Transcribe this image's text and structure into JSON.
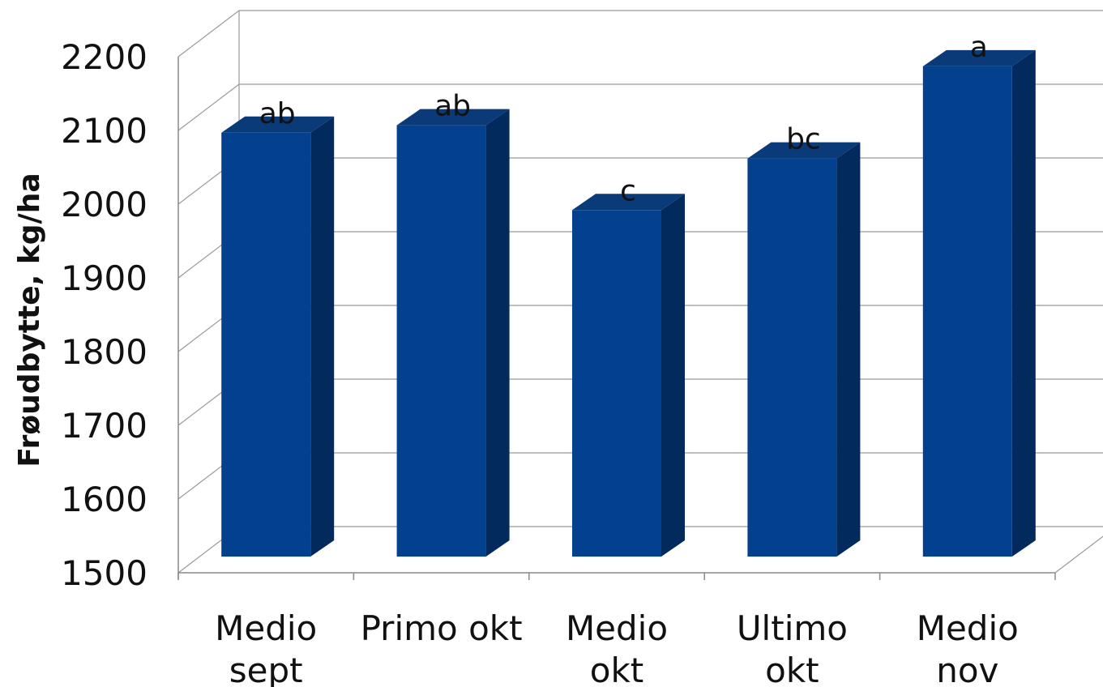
{
  "chart_data": {
    "type": "bar",
    "ylabel": "Frøudbytte, kg/ha",
    "ylim": [
      1500,
      2200
    ],
    "yticks": [
      1500,
      1600,
      1700,
      1800,
      1900,
      2000,
      2100,
      2200
    ],
    "grid": true,
    "categories": [
      [
        "Medio",
        "sept"
      ],
      [
        "Primo okt"
      ],
      [
        "Medio",
        "okt"
      ],
      [
        "Ultimo",
        "okt"
      ],
      [
        "Medio",
        "nov"
      ]
    ],
    "values": [
      2075,
      2085,
      1970,
      2040,
      2165
    ],
    "annotations": [
      "ab",
      "ab",
      "c",
      "bc",
      "a"
    ],
    "colors": {
      "bar_front": "#03418E",
      "bar_side": "#022A5C",
      "bar_top": "#0A3A78",
      "grid": "#9a9a9a",
      "axis": "#8a8a8a"
    }
  }
}
